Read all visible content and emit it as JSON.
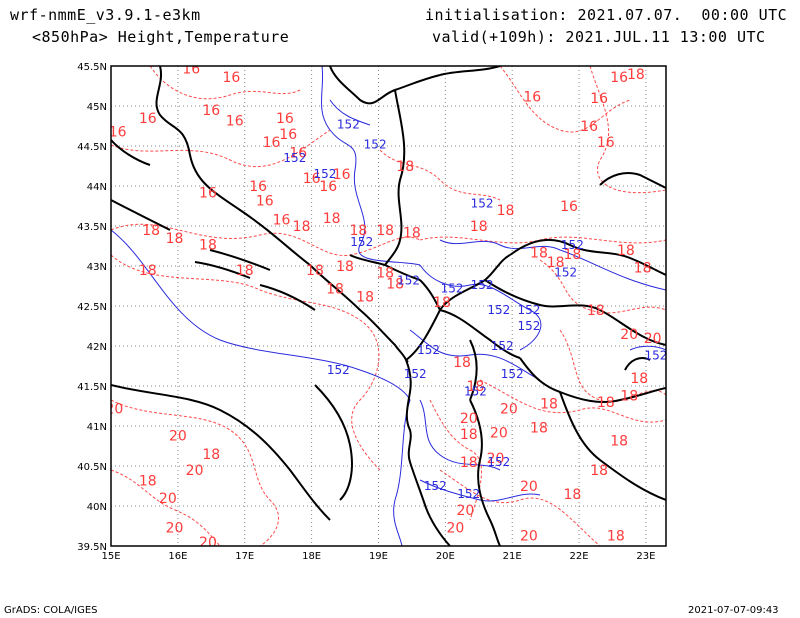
{
  "header": {
    "model": "wrf-nmmE_v3.9.1-e3km",
    "product": "<850hPa> Height,Temperature",
    "init": "initialisation: 2021.07.07.  00:00 UTC",
    "valid": "valid(+109h): 2021.JUL.11 13:00 UTC"
  },
  "footer": {
    "left": "GrADS: COLA/IGES",
    "right": "2021-07-07-09:43"
  },
  "axes": {
    "lon_labels": [
      "15E",
      "16E",
      "17E",
      "18E",
      "19E",
      "20E",
      "21E",
      "22E",
      "23E"
    ],
    "lat_labels": [
      "45.5N",
      "45N",
      "44.5N",
      "44N",
      "43.5N",
      "43N",
      "42.5N",
      "42N",
      "41.5N",
      "41N",
      "40.5N",
      "40N",
      "39.5N"
    ],
    "lon_range": [
      15,
      23.3
    ],
    "lat_range": [
      39.5,
      45.5
    ],
    "grid": "dotted"
  },
  "colors": {
    "temperature": "#ff3b3b",
    "height": "#2b2bdd",
    "coast": "#000000",
    "grid": "#8a8a8a"
  },
  "temperature_labels": [
    {
      "t": "16",
      "lon": 16.2,
      "lat": 45.47
    },
    {
      "t": "16",
      "lon": 16.8,
      "lat": 45.36
    },
    {
      "t": "16",
      "lon": 22.6,
      "lat": 45.36
    },
    {
      "t": "18",
      "lon": 22.85,
      "lat": 45.4
    },
    {
      "t": "16",
      "lon": 22.3,
      "lat": 45.1
    },
    {
      "t": "16",
      "lon": 21.3,
      "lat": 45.12
    },
    {
      "t": "16",
      "lon": 16.5,
      "lat": 44.95
    },
    {
      "t": "16",
      "lon": 15.1,
      "lat": 44.68
    },
    {
      "t": "16",
      "lon": 15.55,
      "lat": 44.85
    },
    {
      "t": "16",
      "lon": 16.85,
      "lat": 44.82
    },
    {
      "t": "16",
      "lon": 17.6,
      "lat": 44.85
    },
    {
      "t": "16",
      "lon": 17.65,
      "lat": 44.65
    },
    {
      "t": "16",
      "lon": 17.4,
      "lat": 44.55
    },
    {
      "t": "16",
      "lon": 17.8,
      "lat": 44.42
    },
    {
      "t": "16",
      "lon": 22.15,
      "lat": 44.75
    },
    {
      "t": "16",
      "lon": 22.4,
      "lat": 44.55
    },
    {
      "t": "16",
      "lon": 18.45,
      "lat": 44.15
    },
    {
      "t": "16",
      "lon": 18.0,
      "lat": 44.1
    },
    {
      "t": "16",
      "lon": 18.25,
      "lat": 44.0
    },
    {
      "t": "18",
      "lon": 19.4,
      "lat": 44.25
    },
    {
      "t": "16",
      "lon": 16.45,
      "lat": 43.92
    },
    {
      "t": "16",
      "lon": 17.2,
      "lat": 44.0
    },
    {
      "t": "16",
      "lon": 17.3,
      "lat": 43.82
    },
    {
      "t": "16",
      "lon": 21.85,
      "lat": 43.75
    },
    {
      "t": "18",
      "lon": 20.9,
      "lat": 43.7
    },
    {
      "t": "18",
      "lon": 20.5,
      "lat": 43.5
    },
    {
      "t": "18",
      "lon": 15.6,
      "lat": 43.45
    },
    {
      "t": "18",
      "lon": 15.95,
      "lat": 43.35
    },
    {
      "t": "16",
      "lon": 17.55,
      "lat": 43.58
    },
    {
      "t": "18",
      "lon": 17.85,
      "lat": 43.5
    },
    {
      "t": "18",
      "lon": 18.3,
      "lat": 43.6
    },
    {
      "t": "18",
      "lon": 18.7,
      "lat": 43.45
    },
    {
      "t": "18",
      "lon": 19.1,
      "lat": 43.45
    },
    {
      "t": "18",
      "lon": 19.5,
      "lat": 43.42
    },
    {
      "t": "18",
      "lon": 16.45,
      "lat": 43.27
    },
    {
      "t": "18",
      "lon": 18.5,
      "lat": 43.0
    },
    {
      "t": "18",
      "lon": 18.05,
      "lat": 42.95
    },
    {
      "t": "18",
      "lon": 17.0,
      "lat": 42.95
    },
    {
      "t": "18",
      "lon": 15.55,
      "lat": 42.95
    },
    {
      "t": "18",
      "lon": 19.1,
      "lat": 42.92
    },
    {
      "t": "18",
      "lon": 19.25,
      "lat": 42.78
    },
    {
      "t": "18",
      "lon": 18.35,
      "lat": 42.72
    },
    {
      "t": "18",
      "lon": 18.8,
      "lat": 42.62
    },
    {
      "t": "18",
      "lon": 21.4,
      "lat": 43.17
    },
    {
      "t": "18",
      "lon": 21.65,
      "lat": 43.05
    },
    {
      "t": "18",
      "lon": 21.9,
      "lat": 43.15
    },
    {
      "t": "18",
      "lon": 22.7,
      "lat": 43.2
    },
    {
      "t": "18",
      "lon": 22.95,
      "lat": 42.98
    },
    {
      "t": "18",
      "lon": 22.25,
      "lat": 42.45
    },
    {
      "t": "18",
      "lon": 19.95,
      "lat": 42.55
    },
    {
      "t": "20",
      "lon": 22.75,
      "lat": 42.15
    },
    {
      "t": "20",
      "lon": 23.1,
      "lat": 42.1
    },
    {
      "t": "18",
      "lon": 22.9,
      "lat": 41.6
    },
    {
      "t": "18",
      "lon": 20.25,
      "lat": 41.8
    },
    {
      "t": "18",
      "lon": 20.45,
      "lat": 41.5
    },
    {
      "t": "18",
      "lon": 22.75,
      "lat": 41.38
    },
    {
      "t": "18",
      "lon": 22.4,
      "lat": 41.3
    },
    {
      "t": "18",
      "lon": 21.55,
      "lat": 41.28
    },
    {
      "t": "20",
      "lon": 15.05,
      "lat": 41.22
    },
    {
      "t": "20",
      "lon": 20.35,
      "lat": 41.1
    },
    {
      "t": "20",
      "lon": 20.95,
      "lat": 41.22
    },
    {
      "t": "18",
      "lon": 20.35,
      "lat": 40.9
    },
    {
      "t": "20",
      "lon": 20.8,
      "lat": 40.92
    },
    {
      "t": "18",
      "lon": 21.4,
      "lat": 40.98
    },
    {
      "t": "18",
      "lon": 22.6,
      "lat": 40.82
    },
    {
      "t": "20",
      "lon": 16.0,
      "lat": 40.88
    },
    {
      "t": "18",
      "lon": 16.5,
      "lat": 40.65
    },
    {
      "t": "20",
      "lon": 16.25,
      "lat": 40.45
    },
    {
      "t": "18",
      "lon": 15.55,
      "lat": 40.32
    },
    {
      "t": "20",
      "lon": 15.85,
      "lat": 40.1
    },
    {
      "t": "18",
      "lon": 20.35,
      "lat": 40.55
    },
    {
      "t": "20",
      "lon": 20.75,
      "lat": 40.6
    },
    {
      "t": "18",
      "lon": 22.3,
      "lat": 40.45
    },
    {
      "t": "20",
      "lon": 21.25,
      "lat": 40.25
    },
    {
      "t": "18",
      "lon": 21.9,
      "lat": 40.15
    },
    {
      "t": "20",
      "lon": 20.3,
      "lat": 39.95
    },
    {
      "t": "20",
      "lon": 20.15,
      "lat": 39.73
    },
    {
      "t": "20",
      "lon": 15.95,
      "lat": 39.73
    },
    {
      "t": "20",
      "lon": 16.45,
      "lat": 39.55
    },
    {
      "t": "20",
      "lon": 21.25,
      "lat": 39.63
    },
    {
      "t": "18",
      "lon": 22.55,
      "lat": 39.63
    }
  ],
  "height_labels": [
    {
      "t": "152",
      "lon": 18.55,
      "lat": 44.77
    },
    {
      "t": "152",
      "lon": 18.95,
      "lat": 44.52
    },
    {
      "t": "152",
      "lon": 17.75,
      "lat": 44.35
    },
    {
      "t": "152",
      "lon": 18.2,
      "lat": 44.15
    },
    {
      "t": "152",
      "lon": 20.55,
      "lat": 43.78
    },
    {
      "t": "152",
      "lon": 18.75,
      "lat": 43.3
    },
    {
      "t": "152",
      "lon": 21.9,
      "lat": 43.26
    },
    {
      "t": "152",
      "lon": 19.45,
      "lat": 42.82
    },
    {
      "t": "152",
      "lon": 20.1,
      "lat": 42.72
    },
    {
      "t": "152",
      "lon": 20.55,
      "lat": 42.76
    },
    {
      "t": "152",
      "lon": 21.8,
      "lat": 42.92
    },
    {
      "t": "152",
      "lon": 20.8,
      "lat": 42.45
    },
    {
      "t": "152",
      "lon": 21.25,
      "lat": 42.45
    },
    {
      "t": "152",
      "lon": 21.25,
      "lat": 42.25
    },
    {
      "t": "152",
      "lon": 20.85,
      "lat": 42.0
    },
    {
      "t": "152",
      "lon": 19.75,
      "lat": 41.95
    },
    {
      "t": "152",
      "lon": 23.15,
      "lat": 41.88
    },
    {
      "t": "152",
      "lon": 18.4,
      "lat": 41.7
    },
    {
      "t": "152",
      "lon": 19.55,
      "lat": 41.65
    },
    {
      "t": "152",
      "lon": 21.0,
      "lat": 41.65
    },
    {
      "t": "152",
      "lon": 20.45,
      "lat": 41.43
    },
    {
      "t": "152",
      "lon": 20.8,
      "lat": 40.55
    },
    {
      "t": "152",
      "lon": 19.85,
      "lat": 40.25
    },
    {
      "t": "152",
      "lon": 20.35,
      "lat": 40.15
    }
  ]
}
